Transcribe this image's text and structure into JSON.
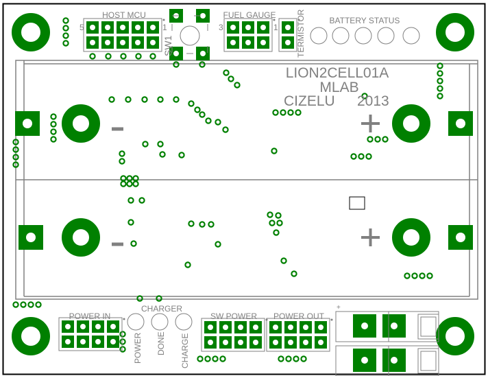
{
  "colors": {
    "copper": "#008000",
    "silkscreen": "#808080",
    "board_outline": "#000000",
    "background": "#ffffff"
  },
  "board": {
    "title_lines": [
      "LION2CELL01A",
      "MLAB"
    ],
    "author": "CIZELU",
    "year": "2013"
  },
  "headers": {
    "host_mcu": {
      "label": "HOST MCU",
      "pin_first": "5",
      "pin_last": "1"
    },
    "fuel_gauge": {
      "label": "FUEL GAUGE",
      "pin_first": "3",
      "pin_last": "1"
    },
    "termistor": {
      "label": "TERMISTOR"
    },
    "power_in": {
      "label": "POWER IN"
    },
    "sw_power": {
      "label": "SW POWER"
    },
    "power_out": {
      "label": "POWER OUT"
    }
  },
  "switch": {
    "label": "SW1"
  },
  "battery_status": {
    "label": "BATTERY STATUS"
  },
  "charger": {
    "label": "CHARGER",
    "leds": [
      "POWER",
      "DONE",
      "CHARGE"
    ]
  },
  "battery": {
    "minus": "−",
    "plus": "+"
  },
  "fuse_marker": "+"
}
